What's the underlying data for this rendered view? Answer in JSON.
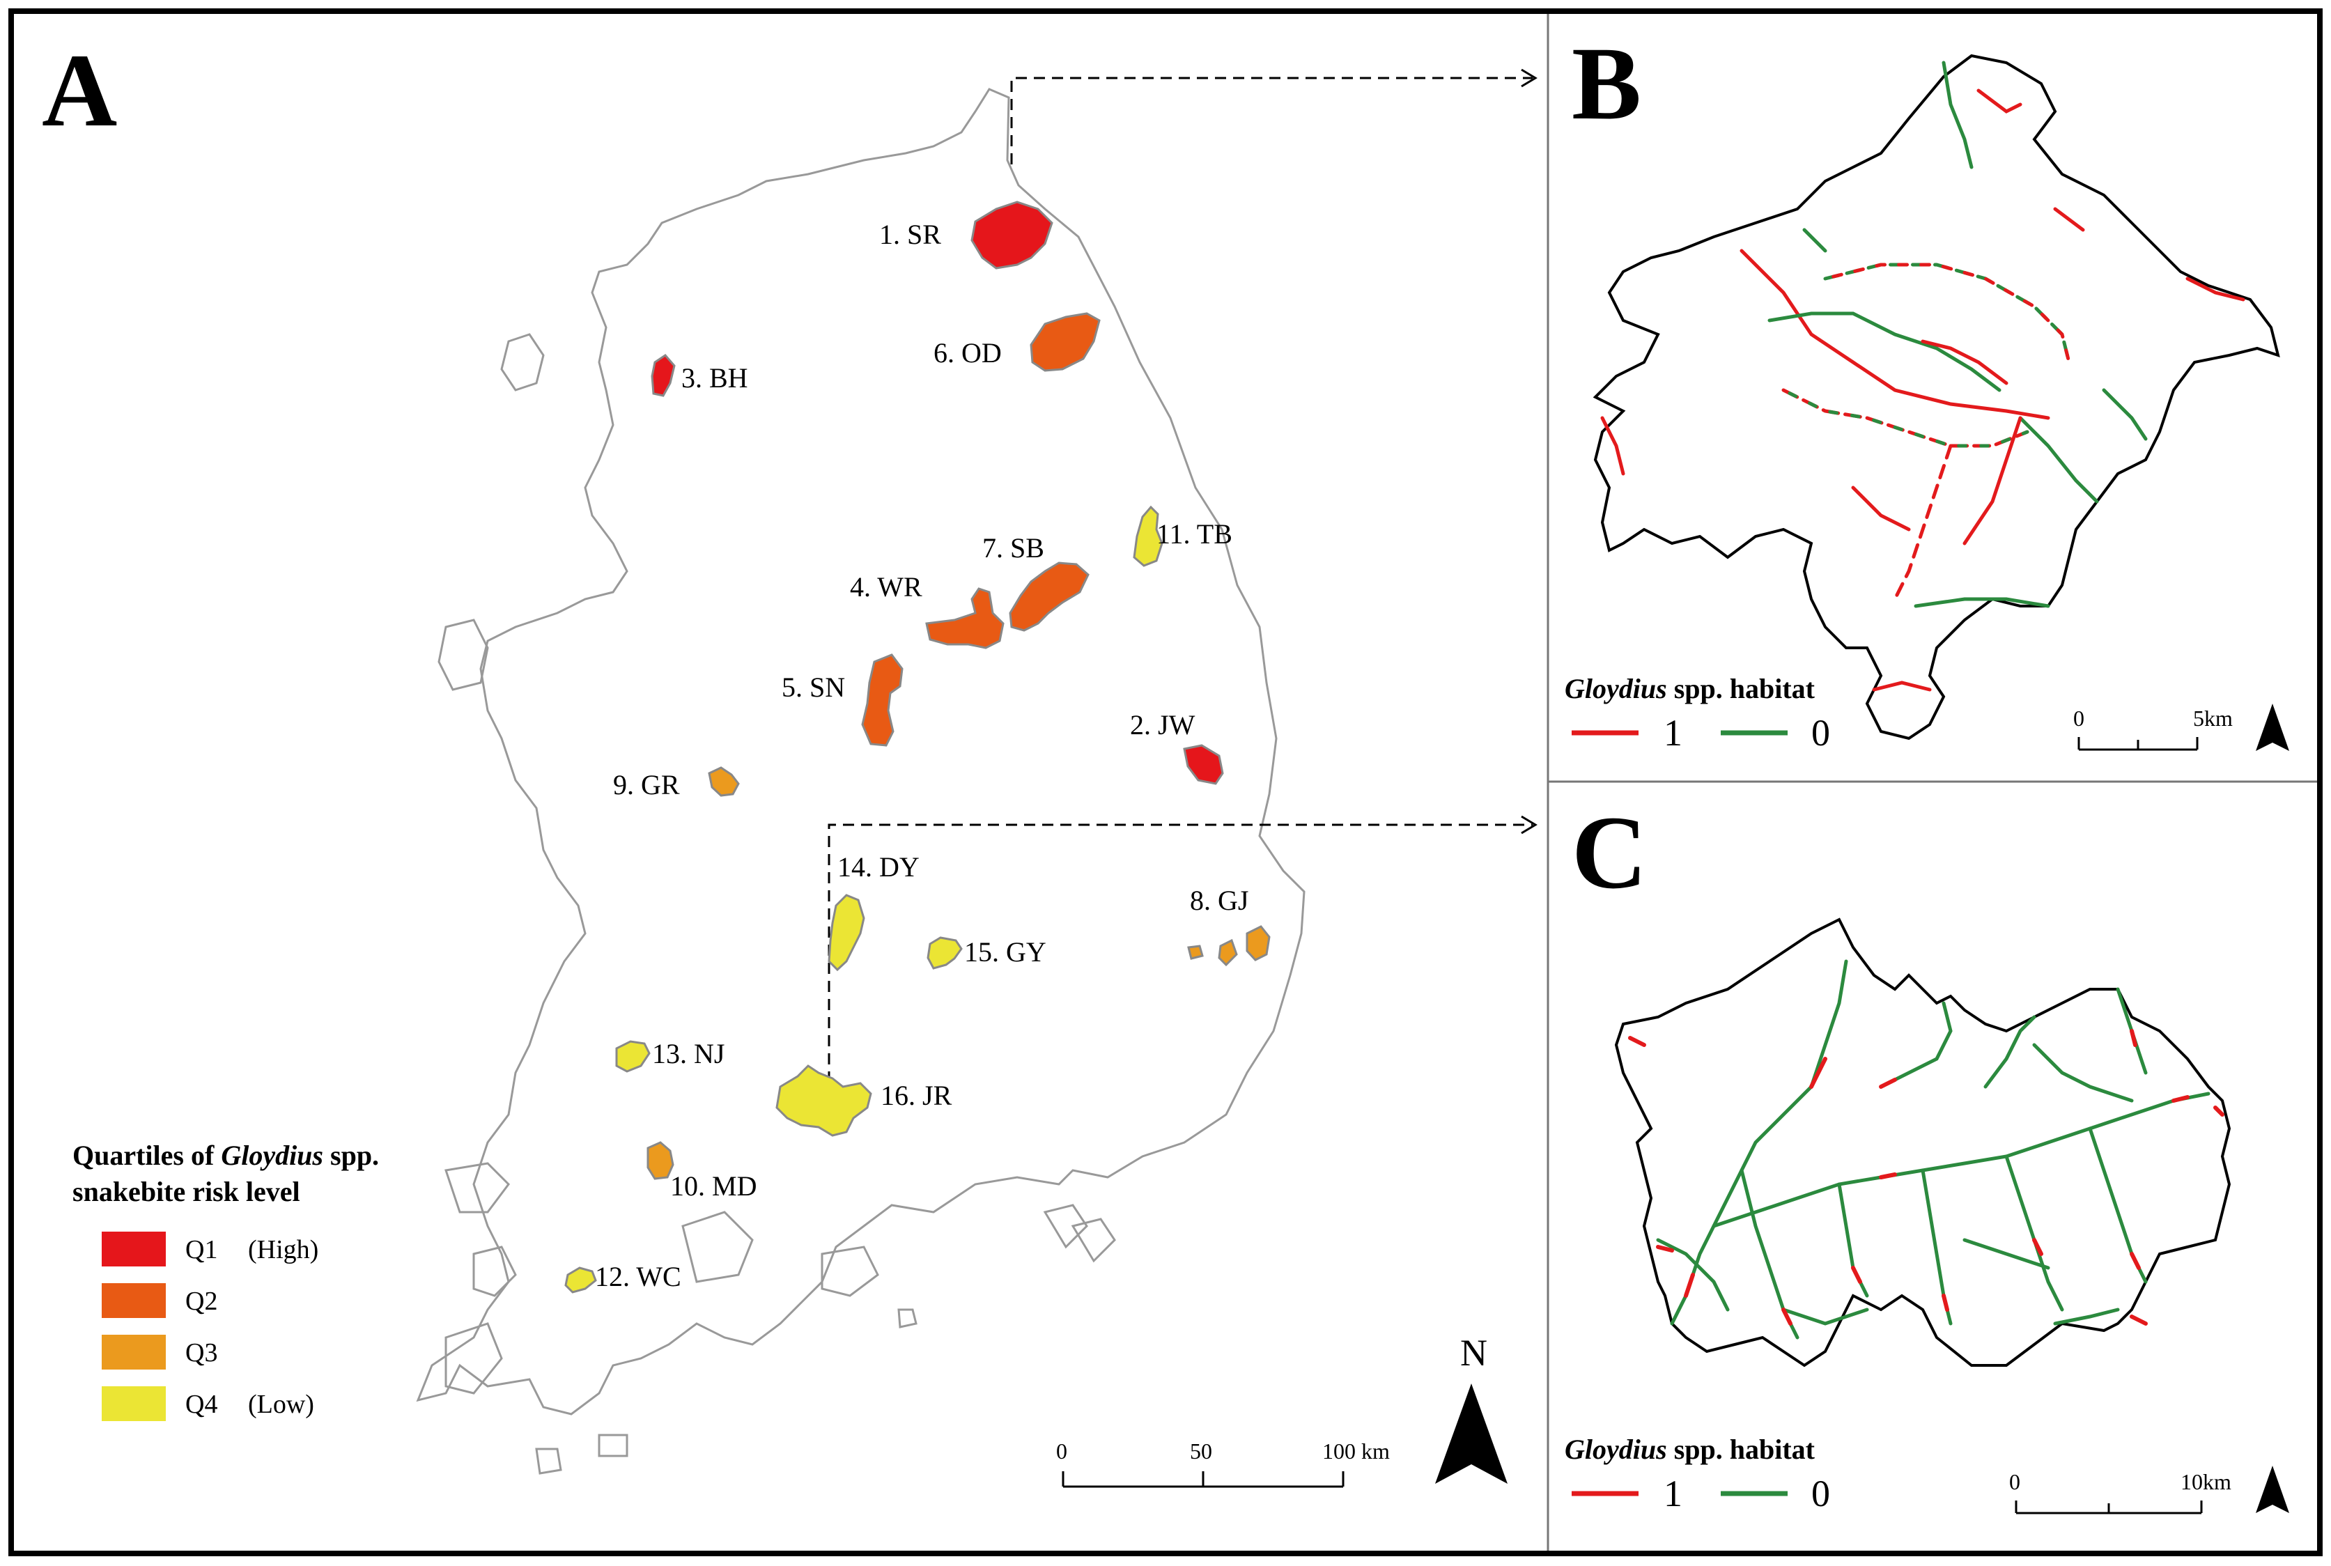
{
  "panels": {
    "a": {
      "letter": "A"
    },
    "b": {
      "letter": "B"
    },
    "c": {
      "letter": "C"
    }
  },
  "sites": [
    {
      "label": "1. SR",
      "risk": "Q1"
    },
    {
      "label": "2. JW",
      "risk": "Q1"
    },
    {
      "label": "3. BH",
      "risk": "Q1"
    },
    {
      "label": "4. WR",
      "risk": "Q2"
    },
    {
      "label": "5. SN",
      "risk": "Q2"
    },
    {
      "label": "6. OD",
      "risk": "Q2"
    },
    {
      "label": "7. SB",
      "risk": "Q2"
    },
    {
      "label": "8. GJ",
      "risk": "Q3"
    },
    {
      "label": "9. GR",
      "risk": "Q3"
    },
    {
      "label": "10. MD",
      "risk": "Q3"
    },
    {
      "label": "11. TB",
      "risk": "Q4"
    },
    {
      "label": "12. WC",
      "risk": "Q4"
    },
    {
      "label": "13. NJ",
      "risk": "Q4"
    },
    {
      "label": "14. DY",
      "risk": "Q4"
    },
    {
      "label": "15. GY",
      "risk": "Q4"
    },
    {
      "label": "16. JR",
      "risk": "Q4"
    }
  ],
  "risk_legend": {
    "title_before": "Quartiles of ",
    "title_italic": "Gloydius",
    "title_after": " spp.",
    "title_line2": "snakebite risk level",
    "items": [
      {
        "label": "Q1",
        "note": "(High)",
        "color": "#e5161b"
      },
      {
        "label": "Q2",
        "note": "",
        "color": "#e85a14"
      },
      {
        "label": "Q3",
        "note": "",
        "color": "#eb9a1e"
      },
      {
        "label": "Q4",
        "note": "(Low)",
        "color": "#ebe534"
      }
    ]
  },
  "scalebar_a": {
    "ticks": [
      "0",
      "50",
      "100 km"
    ]
  },
  "north": {
    "label": "N"
  },
  "habitat_legend": {
    "title_italic": "Gloydius",
    "title_rest": " spp. habitat",
    "items": [
      {
        "label": "1",
        "color": "#e31a1c"
      },
      {
        "label": "0",
        "color": "#2b8a3e"
      }
    ]
  },
  "scalebar_b": {
    "ticks": [
      "0",
      "5km"
    ]
  },
  "scalebar_c": {
    "ticks": [
      "0",
      "10km"
    ]
  },
  "colors": {
    "outline": "#999999",
    "frame": "#000000",
    "habitat_1": "#e31a1c",
    "habitat_0": "#2b8a3e"
  }
}
